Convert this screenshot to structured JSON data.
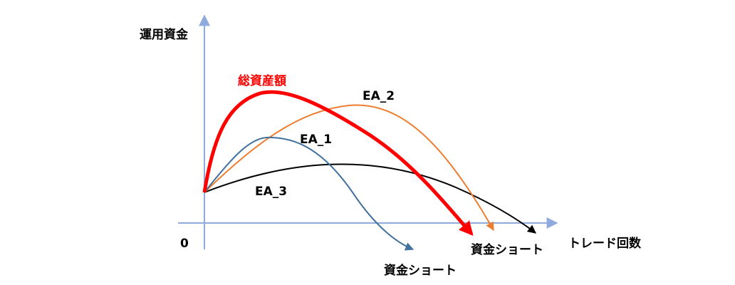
{
  "axes": {
    "y_label": "運用資金",
    "x_label": "トレード回数",
    "origin_label": "0",
    "axis_color": "#8faadc"
  },
  "curves": [
    {
      "label": "総資産額",
      "color": "#ff0000",
      "end_label": "資金ショート"
    },
    {
      "label": "EA_2",
      "color": "#ed7d31"
    },
    {
      "label": "EA_1",
      "color": "#41719c",
      "end_label": "資金ショート"
    },
    {
      "label": "EA_3",
      "color": "#000000"
    }
  ],
  "total_label_color": "#ff0000"
}
